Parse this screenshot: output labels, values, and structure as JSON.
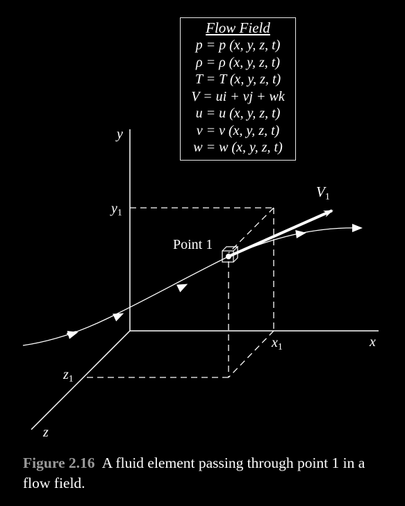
{
  "flow_field": {
    "title": "Flow Field",
    "equations": [
      "p = p (x, y, z, t)",
      "ρ = ρ (x, y, z, t)",
      "T = T (x, y, z, t)",
      "V = ui + vj + wk",
      "u = u (x, y, z, t)",
      "v = v (x, y, z, t)",
      "w = w (x, y, z, t)"
    ]
  },
  "axes": {
    "x": "x",
    "y": "y",
    "z": "z",
    "x1": "x",
    "y1": "y",
    "z1": "z",
    "subscript": "1"
  },
  "labels": {
    "point": "Point 1",
    "velocity": "V",
    "velocity_subscript": "1"
  },
  "caption": {
    "figure": "Figure 2.16",
    "text": "A fluid element passing through point 1 in a flow field."
  }
}
